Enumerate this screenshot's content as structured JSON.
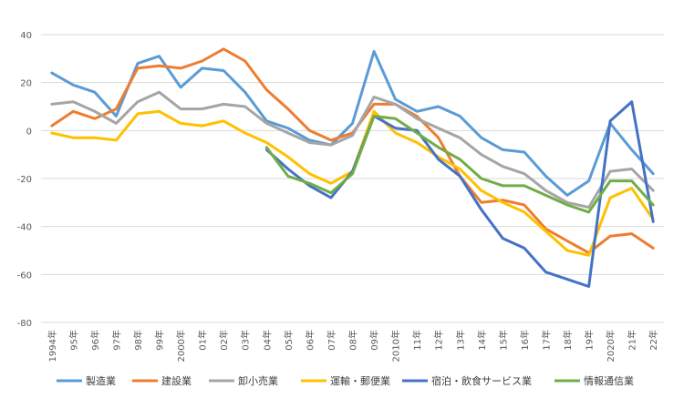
{
  "chart_data": {
    "type": "line",
    "title": "",
    "xlabel": "",
    "ylabel": "",
    "ylim": [
      -80,
      40
    ],
    "yticks": [
      40,
      20,
      0,
      -20,
      -40,
      -60,
      -80
    ],
    "grid": true,
    "legend_position": "bottom",
    "categories": [
      "1994年",
      "95年",
      "96年",
      "97年",
      "98年",
      "99年",
      "2000年",
      "01年",
      "02年",
      "03年",
      "04年",
      "05年",
      "06年",
      "07年",
      "08年",
      "09年",
      "2010年",
      "11年",
      "12年",
      "13年",
      "14年",
      "15年",
      "16年",
      "17年",
      "18年",
      "19年",
      "2020年",
      "21年",
      "22年"
    ],
    "series": [
      {
        "name": "製造業",
        "color": "#5B9BD5",
        "values": [
          24,
          19,
          16,
          6,
          28,
          31,
          18,
          26,
          25,
          16,
          4,
          1,
          -4,
          -6,
          3,
          33,
          13,
          8,
          10,
          6,
          -3,
          -8,
          -9,
          -19,
          -27,
          -21,
          3,
          -8,
          -18
        ]
      },
      {
        "name": "建設業",
        "color": "#ED7D31",
        "values": [
          2,
          8,
          5,
          9,
          26,
          27,
          26,
          29,
          34,
          29,
          17,
          9,
          0,
          -4,
          -1,
          11,
          11,
          6,
          -3,
          -19,
          -30,
          -29,
          -31,
          -41,
          -46,
          -51,
          -44,
          -43,
          -49
        ]
      },
      {
        "name": "卸小売業",
        "color": "#A5A5A5",
        "values": [
          11,
          12,
          8,
          3,
          12,
          16,
          9,
          9,
          11,
          10,
          3,
          -1,
          -5,
          -6,
          -2,
          14,
          11,
          5,
          1,
          -3,
          -10,
          -15,
          -18,
          -25,
          -30,
          -32,
          -17,
          -16,
          -25
        ]
      },
      {
        "name": "運輸・郵便業",
        "color": "#FFC000",
        "values": [
          -1,
          -3,
          -3,
          -4,
          7,
          8,
          3,
          2,
          4,
          -1,
          -5,
          -11,
          -18,
          -22,
          -17,
          8,
          -1,
          -5,
          -11,
          -16,
          -25,
          -30,
          -34,
          -42,
          -50,
          -52,
          -28,
          -24,
          -37
        ]
      },
      {
        "name": "宿泊・飲食サービス業",
        "color": "#4472C4",
        "values": [
          null,
          null,
          null,
          null,
          null,
          null,
          null,
          null,
          null,
          null,
          -8,
          -16,
          -23,
          -28,
          -17,
          6,
          1,
          0,
          -12,
          -19,
          -33,
          -45,
          -49,
          -59,
          -62,
          -65,
          4,
          12,
          -38
        ]
      },
      {
        "name": "情報通信業",
        "color": "#70AD47",
        "values": [
          null,
          null,
          null,
          null,
          null,
          null,
          null,
          null,
          null,
          null,
          -7,
          -19,
          -22,
          -26,
          -18,
          6,
          5,
          -1,
          -7,
          -12,
          -20,
          -23,
          -23,
          -27,
          -31,
          -34,
          -21,
          -21,
          -31
        ]
      }
    ]
  }
}
